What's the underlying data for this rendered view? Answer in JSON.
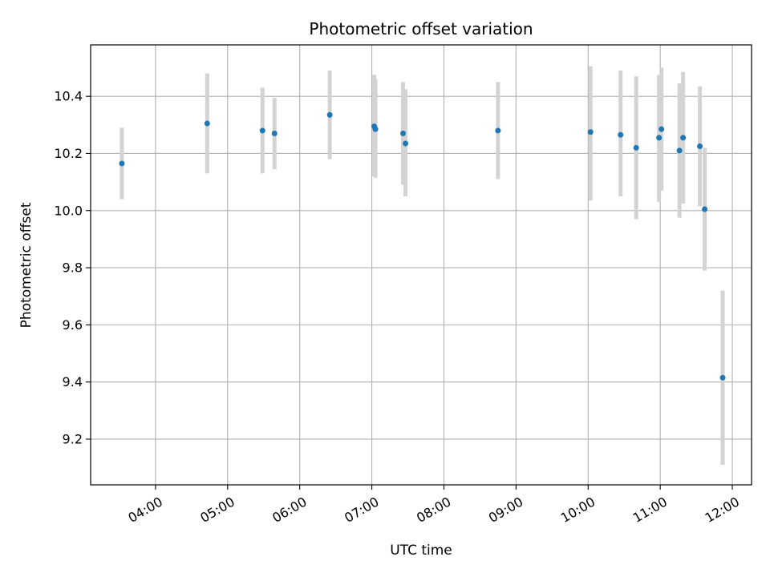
{
  "chart_data": {
    "type": "scatter",
    "title": "Photometric offset variation",
    "xlabel": "UTC time",
    "ylabel": "Photometric offset",
    "x_ticks": [
      "04:00",
      "05:00",
      "06:00",
      "07:00",
      "08:00",
      "09:00",
      "10:00",
      "11:00",
      "12:00"
    ],
    "y_ticks": [
      "9.2",
      "9.4",
      "9.6",
      "9.8",
      "10.0",
      "10.2",
      "10.4"
    ],
    "xlim": [
      "03:06",
      "12:16"
    ],
    "ylim": [
      9.04,
      10.58
    ],
    "grid": true,
    "colors": {
      "points": "#1f77b4",
      "errorbars": "#d3d3d3",
      "grid": "#b0b0b0"
    },
    "series": [
      {
        "points": [
          {
            "x": "03:32",
            "y": 10.165,
            "err_low": 10.04,
            "err_high": 10.29
          },
          {
            "x": "04:43",
            "y": 10.305,
            "err_low": 10.13,
            "err_high": 10.48
          },
          {
            "x": "05:29",
            "y": 10.28,
            "err_low": 10.13,
            "err_high": 10.43
          },
          {
            "x": "05:39",
            "y": 10.27,
            "err_low": 10.145,
            "err_high": 10.395
          },
          {
            "x": "06:25",
            "y": 10.335,
            "err_low": 10.18,
            "err_high": 10.49
          },
          {
            "x": "07:02",
            "y": 10.295,
            "err_low": 10.12,
            "err_high": 10.475
          },
          {
            "x": "07:03",
            "y": 10.285,
            "err_low": 10.115,
            "err_high": 10.46
          },
          {
            "x": "07:26",
            "y": 10.27,
            "err_low": 10.09,
            "err_high": 10.45
          },
          {
            "x": "07:28",
            "y": 10.235,
            "err_low": 10.05,
            "err_high": 10.425
          },
          {
            "x": "08:45",
            "y": 10.28,
            "err_low": 10.11,
            "err_high": 10.45
          },
          {
            "x": "10:02",
            "y": 10.275,
            "err_low": 10.035,
            "err_high": 10.505
          },
          {
            "x": "10:27",
            "y": 10.265,
            "err_low": 10.05,
            "err_high": 10.49
          },
          {
            "x": "10:40",
            "y": 10.22,
            "err_low": 9.97,
            "err_high": 10.47
          },
          {
            "x": "10:59",
            "y": 10.255,
            "err_low": 10.03,
            "err_high": 10.475
          },
          {
            "x": "11:01",
            "y": 10.285,
            "err_low": 10.07,
            "err_high": 10.5
          },
          {
            "x": "11:16",
            "y": 10.21,
            "err_low": 9.975,
            "err_high": 10.445
          },
          {
            "x": "11:19",
            "y": 10.255,
            "err_low": 10.025,
            "err_high": 10.485
          },
          {
            "x": "11:33",
            "y": 10.225,
            "err_low": 10.015,
            "err_high": 10.435
          },
          {
            "x": "11:37",
            "y": 10.005,
            "err_low": 9.79,
            "err_high": 10.22
          },
          {
            "x": "11:52",
            "y": 9.415,
            "err_low": 9.11,
            "err_high": 9.72
          }
        ]
      }
    ]
  }
}
